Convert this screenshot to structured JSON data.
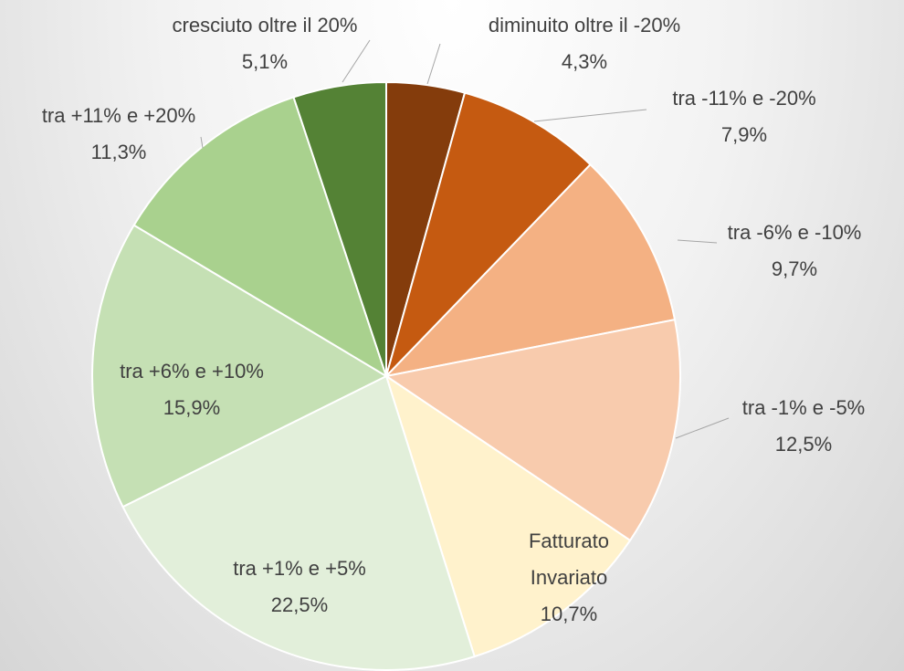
{
  "chart_data": {
    "type": "pie",
    "categories": [
      "diminuito oltre il -20%",
      "tra -11% e -20%",
      "tra -6% e -10%",
      "tra -1% e -5%",
      "Fatturato Invariato",
      "tra +1% e +5%",
      "tra +6% e +10%",
      "tra +11% e +20%",
      "cresciuto oltre il 20%"
    ],
    "values": [
      4.3,
      7.9,
      9.7,
      12.5,
      10.7,
      22.5,
      15.9,
      11.3,
      5.1
    ],
    "value_labels": [
      "4,3%",
      "7,9%",
      "9,7%",
      "12,5%",
      "10,7%",
      "22,5%",
      "15,9%",
      "11,3%",
      "5,1%"
    ],
    "colors": [
      "#843c0c",
      "#c55a11",
      "#f4b183",
      "#f8cbad",
      "#fff2cc",
      "#e2efda",
      "#c5e0b4",
      "#a9d18e",
      "#548235"
    ]
  }
}
